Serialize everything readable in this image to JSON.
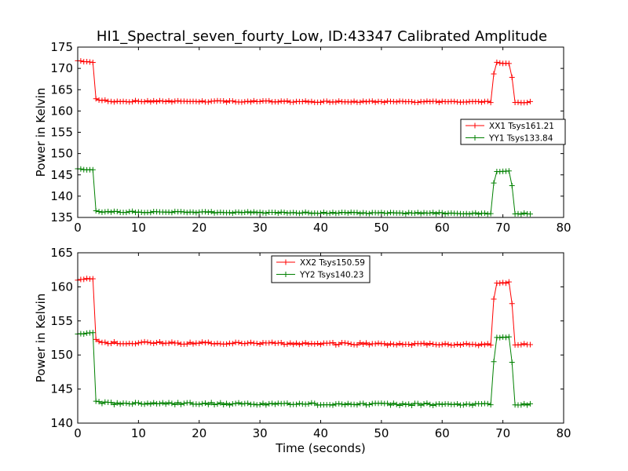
{
  "title": "HI1_Spectral_seven_fourty_Low, ID:43347 Calibrated Amplitude",
  "chart_data": [
    {
      "type": "line",
      "xlabel": "",
      "ylabel": "Power in Kelvin",
      "xlim": [
        0,
        80
      ],
      "ylim": [
        135,
        175
      ],
      "xticks": [
        "0",
        "10",
        "20",
        "30",
        "40",
        "50",
        "60",
        "70",
        "80"
      ],
      "yticks": [
        "135",
        "140",
        "145",
        "150",
        "155",
        "160",
        "165",
        "170",
        "175"
      ],
      "legend_position": "center-right",
      "grid": false,
      "x_end": 74.5,
      "x_step": 0.5,
      "series": [
        {
          "name": "XX1 Tsys161.21",
          "color": "#ff0000",
          "high": 171.7,
          "low": 162.2,
          "shape": [
            [
              0,
              171.8
            ],
            [
              2.5,
              171.5
            ],
            [
              3.0,
              162.8
            ],
            [
              5,
              162.3
            ],
            [
              74.5,
              162.1
            ]
          ],
          "pulse": [
            [
              68.5,
              168.8
            ],
            [
              69.0,
              171.3
            ],
            [
              71.0,
              171.2
            ],
            [
              71.5,
              168.0
            ],
            [
              72.0,
              162.1
            ]
          ]
        },
        {
          "name": "YY1 Tsys133.84",
          "color": "#008000",
          "shape": [
            [
              0,
              146.4
            ],
            [
              2.5,
              146.2
            ],
            [
              3.0,
              136.5
            ],
            [
              5,
              136.3
            ],
            [
              74.5,
              135.9
            ]
          ],
          "pulse": [
            [
              68.5,
              143.2
            ],
            [
              69.0,
              145.9
            ],
            [
              71.0,
              145.8
            ],
            [
              71.5,
              142.5
            ],
            [
              72.0,
              135.9
            ]
          ]
        }
      ]
    },
    {
      "type": "line",
      "xlabel": "Time (seconds)",
      "ylabel": "Power in Kelvin",
      "xlim": [
        0,
        80
      ],
      "ylim": [
        140,
        165
      ],
      "xticks": [
        "0",
        "10",
        "20",
        "30",
        "40",
        "50",
        "60",
        "70",
        "80"
      ],
      "yticks": [
        "140",
        "145",
        "150",
        "155",
        "160",
        "165"
      ],
      "legend_position": "top-center",
      "grid": false,
      "x_end": 74.5,
      "x_step": 0.5,
      "series": [
        {
          "name": "XX2 Tsys150.59",
          "color": "#ff0000",
          "shape": [
            [
              0,
              161.1
            ],
            [
              2.5,
              161.1
            ],
            [
              3.0,
              152.2
            ],
            [
              5,
              151.8
            ],
            [
              74.5,
              151.5
            ]
          ],
          "pulse": [
            [
              68.5,
              158.3
            ],
            [
              69.0,
              160.6
            ],
            [
              71.0,
              160.6
            ],
            [
              71.5,
              157.6
            ],
            [
              72.0,
              151.5
            ]
          ]
        },
        {
          "name": "YY2 Tsys140.23",
          "color": "#008000",
          "shape": [
            [
              0,
              153.1
            ],
            [
              2.5,
              153.3
            ],
            [
              3.0,
              143.2
            ],
            [
              5,
              142.9
            ],
            [
              74.5,
              142.7
            ]
          ],
          "pulse": [
            [
              68.5,
              149.0
            ],
            [
              69.0,
              152.6
            ],
            [
              71.0,
              152.6
            ],
            [
              71.5,
              149.0
            ],
            [
              72.0,
              142.7
            ]
          ]
        }
      ]
    }
  ]
}
